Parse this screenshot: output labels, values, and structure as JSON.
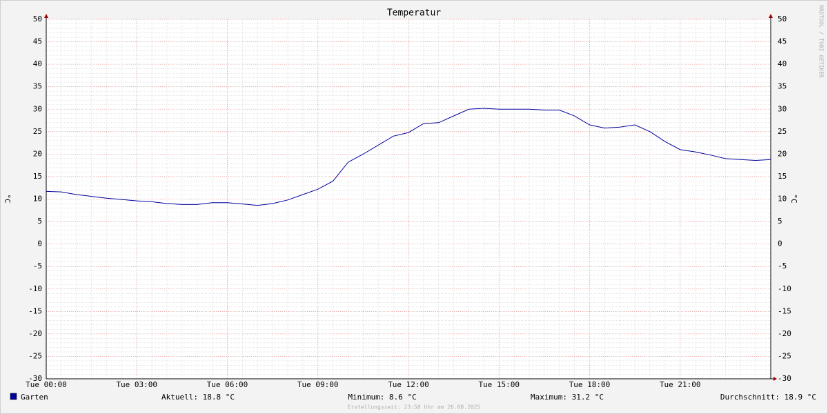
{
  "chart_data": {
    "type": "line",
    "title": "Temperatur",
    "y_label": "°C",
    "x": [
      0,
      0.5,
      1,
      1.5,
      2,
      2.5,
      3,
      3.5,
      4,
      4.5,
      5,
      5.5,
      6,
      6.5,
      7,
      7.5,
      8,
      8.5,
      9,
      9.5,
      10,
      10.5,
      11,
      11.5,
      12,
      12.5,
      13,
      13.5,
      14,
      14.5,
      15,
      15.5,
      16,
      16.5,
      17,
      17.5,
      18,
      18.5,
      19,
      19.5,
      20,
      20.5,
      21,
      21.5,
      22,
      22.5,
      23,
      23.5,
      24
    ],
    "series": [
      {
        "name": "Garten",
        "color": "#00009c",
        "values": [
          11.7,
          11.6,
          11.0,
          10.6,
          10.2,
          9.9,
          9.6,
          9.4,
          9.0,
          8.8,
          8.8,
          9.2,
          9.2,
          8.9,
          8.6,
          9.0,
          9.8,
          11.0,
          12.2,
          14.0,
          18.2,
          20.0,
          22.0,
          24.0,
          24.8,
          26.8,
          27.0,
          28.5,
          30.0,
          30.2,
          30.0,
          30.0,
          30.0,
          29.8,
          29.8,
          28.5,
          26.5,
          25.8,
          26.0,
          26.5,
          25.0,
          22.8,
          21.0,
          20.5,
          19.8,
          19.0,
          18.8,
          18.6,
          18.8
        ]
      }
    ],
    "xlim": [
      0,
      24
    ],
    "xticks": [
      {
        "value": 0,
        "label": "Tue 00:00"
      },
      {
        "value": 3,
        "label": "Tue 03:00"
      },
      {
        "value": 6,
        "label": "Tue 06:00"
      },
      {
        "value": 9,
        "label": "Tue 09:00"
      },
      {
        "value": 12,
        "label": "Tue 12:00"
      },
      {
        "value": 15,
        "label": "Tue 15:00"
      },
      {
        "value": 18,
        "label": "Tue 18:00"
      },
      {
        "value": 21,
        "label": "Tue 21:00"
      }
    ],
    "ylim": [
      -30,
      50
    ],
    "yticks": [
      -30,
      -25,
      -20,
      -15,
      -10,
      -5,
      0,
      5,
      10,
      15,
      20,
      25,
      30,
      35,
      40,
      45,
      50
    ],
    "grid": true,
    "legend_stats": [
      "Aktuell: 18.8 °C",
      "Minimum: 8.6 °C",
      "Maximum: 31.2 °C",
      "Durchschnitt: 18.9 °C"
    ],
    "watermark": "RRDTOOL / TOBI OETIKER",
    "footer": "Erstellungszeit: 23:58 Uhr am 26.08.2025"
  }
}
